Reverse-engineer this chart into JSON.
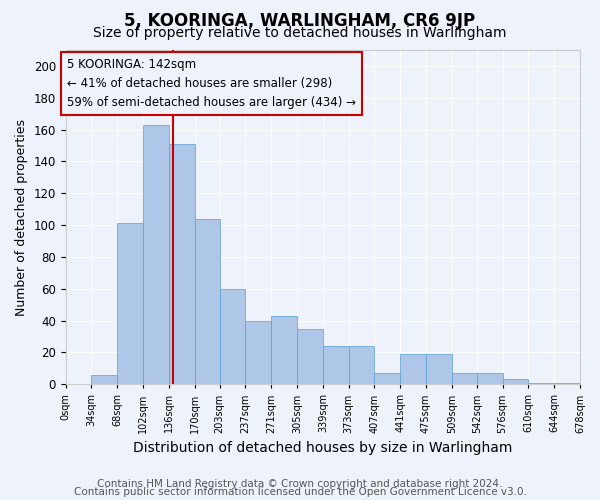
{
  "title": "5, KOORINGA, WARLINGHAM, CR6 9JP",
  "subtitle": "Size of property relative to detached houses in Warlingham",
  "xlabel": "Distribution of detached houses by size in Warlingham",
  "ylabel": "Number of detached properties",
  "bar_values": [
    0,
    6,
    101,
    163,
    151,
    104,
    60,
    40,
    43,
    35,
    24,
    24,
    7,
    19,
    19,
    7,
    7,
    3,
    1,
    1
  ],
  "bin_edges": [
    0,
    34,
    68,
    102,
    136,
    170,
    203,
    237,
    271,
    305,
    339,
    373,
    407,
    441,
    475,
    509,
    542,
    576,
    610,
    644,
    678
  ],
  "tick_labels": [
    "0sqm",
    "34sqm",
    "68sqm",
    "102sqm",
    "136sqm",
    "170sqm",
    "203sqm",
    "237sqm",
    "271sqm",
    "305sqm",
    "339sqm",
    "373sqm",
    "407sqm",
    "441sqm",
    "475sqm",
    "509sqm",
    "542sqm",
    "576sqm",
    "610sqm",
    "644sqm",
    "678sqm"
  ],
  "property_size": 142,
  "bar_color": "#aec6e8",
  "bar_edge_color": "#5a9fd4",
  "vline_color": "#cc0000",
  "annotation_text": "5 KOORINGA: 142sqm\n← 41% of detached houses are smaller (298)\n59% of semi-detached houses are larger (434) →",
  "ylim": [
    0,
    210
  ],
  "yticks": [
    0,
    20,
    40,
    60,
    80,
    100,
    120,
    140,
    160,
    180,
    200
  ],
  "background_color": "#eef2fa",
  "grid_color": "#ffffff",
  "footer1": "Contains HM Land Registry data © Crown copyright and database right 2024.",
  "footer2": "Contains public sector information licensed under the Open Government Licence v3.0.",
  "title_fontsize": 12,
  "subtitle_fontsize": 10,
  "xlabel_fontsize": 10,
  "ylabel_fontsize": 9,
  "annotation_fontsize": 8.5,
  "footer_fontsize": 7.5
}
